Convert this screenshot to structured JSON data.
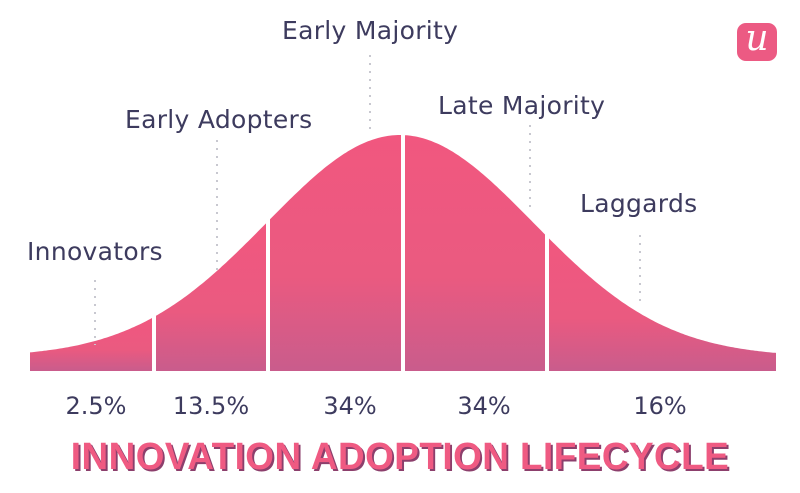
{
  "logo": {
    "letter": "u",
    "color": "#ec5a83"
  },
  "title": "INNOVATION ADOPTION LIFECYCLE",
  "colors": {
    "curve_top": "#f1577f",
    "curve_bottom": "#c95c8c",
    "text": "#3d3b5e"
  },
  "chart_data": {
    "type": "area",
    "shape": "bell curve",
    "categories": [
      "Innovators",
      "Early Adopters",
      "Early Majority",
      "Late Majority",
      "Laggards"
    ],
    "values": [
      "2.5%",
      "13.5%",
      "34%",
      "34%",
      "16%"
    ],
    "title": "INNOVATION ADOPTION LIFECYCLE"
  }
}
